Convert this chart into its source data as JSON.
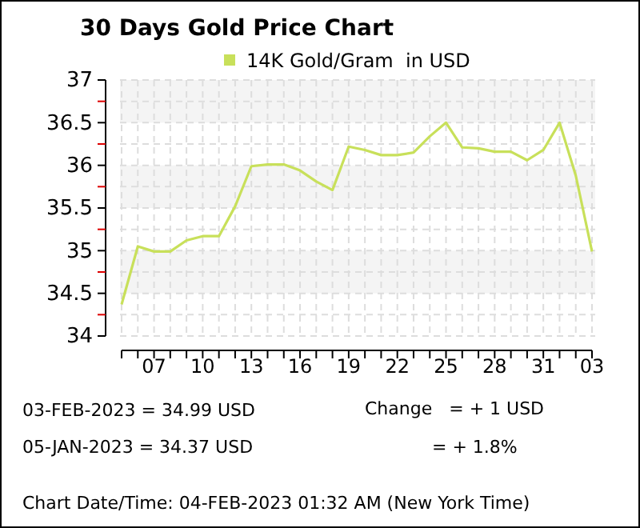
{
  "chart_data": {
    "type": "line",
    "title": "30 Days Gold Price Chart",
    "categories": [
      null,
      null,
      "07",
      null,
      null,
      "10",
      null,
      null,
      "13",
      null,
      null,
      "16",
      null,
      null,
      "19",
      null,
      null,
      "22",
      null,
      null,
      "25",
      null,
      null,
      "28",
      null,
      null,
      "31",
      null,
      null,
      "03"
    ],
    "series": [
      {
        "name": "14K Gold/Gram  in USD",
        "color": "#c8e05a",
        "values": [
          34.37,
          35.05,
          34.99,
          34.99,
          35.12,
          35.17,
          35.17,
          35.52,
          35.99,
          36.01,
          36.01,
          35.94,
          35.81,
          35.71,
          36.22,
          36.18,
          36.12,
          36.12,
          36.15,
          36.34,
          36.5,
          36.21,
          36.2,
          36.16,
          36.16,
          36.06,
          36.18,
          36.5,
          35.88,
          34.99
        ]
      }
    ],
    "ylim": [
      34,
      37
    ],
    "yticks": [
      34,
      {
        "value": 34.25,
        "label": null
      },
      34.5,
      {
        "value": 34.75,
        "label": null
      },
      35,
      {
        "value": 35.25,
        "label": null
      },
      35.5,
      {
        "value": 35.75,
        "label": null
      },
      36,
      {
        "value": 36.25,
        "label": null
      },
      36.5,
      {
        "value": 36.75,
        "label": null
      },
      37
    ],
    "bands": [
      {
        "axis": "y",
        "from": 34.5,
        "to": 35,
        "color": "#f4f4f4"
      },
      {
        "axis": "y",
        "from": 35.5,
        "to": 36,
        "color": "#f4f4f4"
      },
      {
        "axis": "y",
        "from": 36.5,
        "to": 37,
        "color": "#f4f4f4"
      }
    ],
    "grid": true,
    "legend": "top",
    "marker": "none",
    "line_style": "solid",
    "annotations": [
      "03-FEB-2023 = 34.99 USD",
      "05-JAN-2023 = 34.37 USD",
      "Change   = + 1 USD",
      "= + 1.8%",
      "Chart Date/Time: 04-FEB-2023 01:32 AM (New York Time)"
    ]
  }
}
